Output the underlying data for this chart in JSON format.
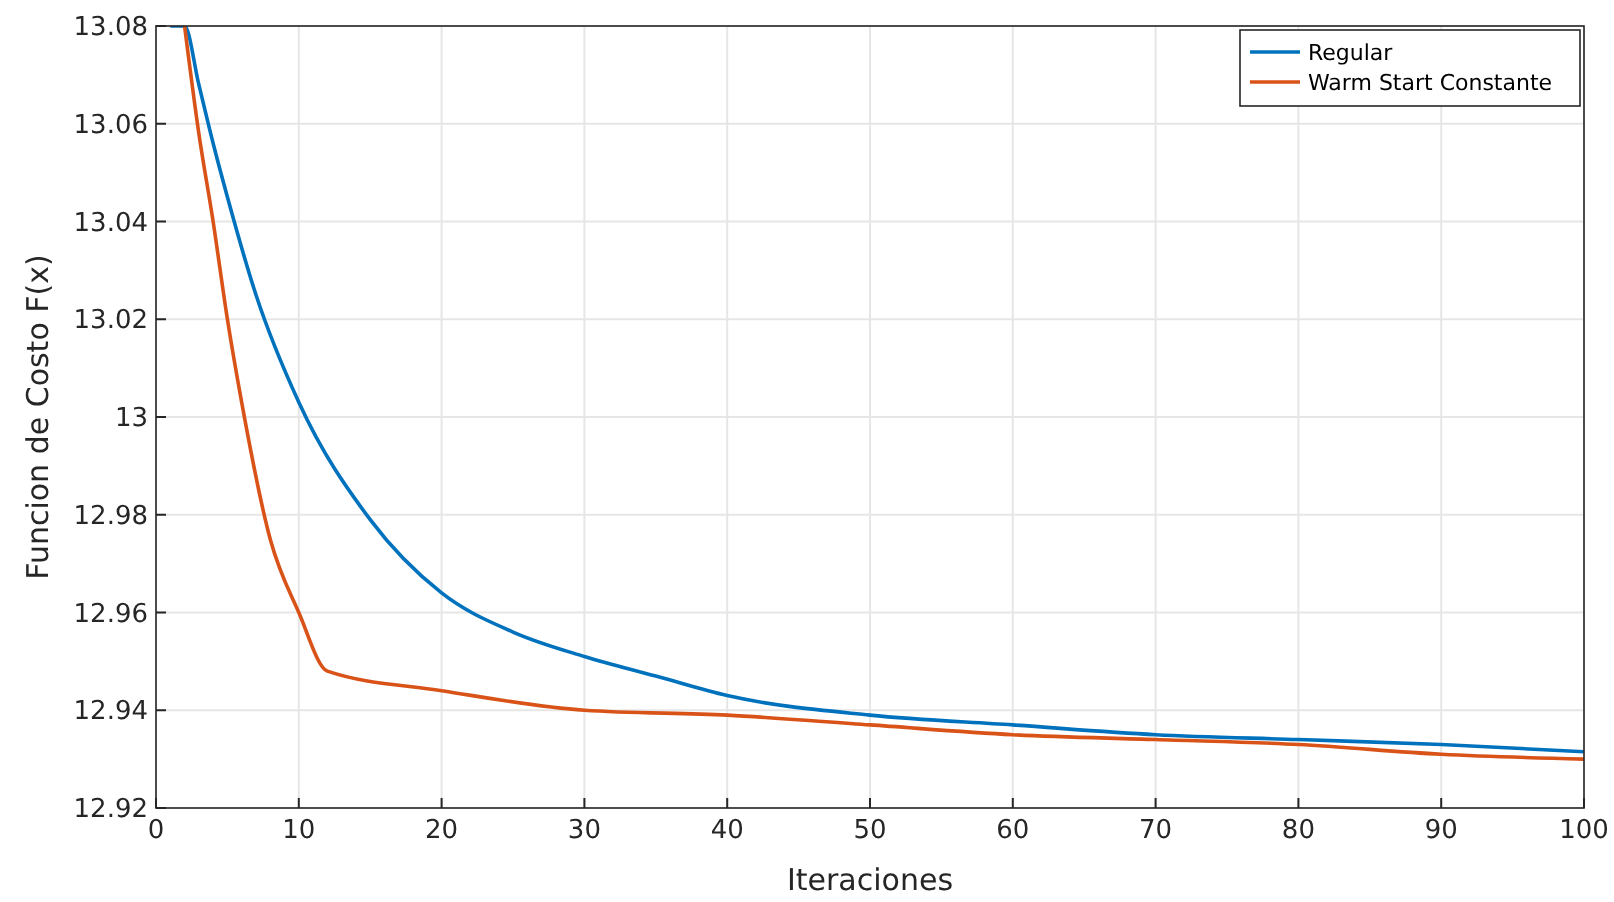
{
  "chart_data": {
    "type": "line",
    "xlabel": "Iteraciones",
    "ylabel": "Funcion de Costo F(x)",
    "xlim": [
      0,
      100
    ],
    "ylim": [
      12.92,
      13.08
    ],
    "xticks": [
      0,
      10,
      20,
      30,
      40,
      50,
      60,
      70,
      80,
      90,
      100
    ],
    "yticks": [
      12.92,
      12.94,
      12.96,
      12.98,
      13,
      13.02,
      13.04,
      13.06,
      13.08
    ],
    "grid": true,
    "legend": "top right",
    "line_style": "solid",
    "series": [
      {
        "name": "Regular",
        "color": "#0072bd",
        "x": [
          1,
          2,
          3,
          4,
          5,
          7,
          10,
          15,
          20,
          25,
          30,
          35,
          40,
          50,
          60,
          70,
          80,
          90,
          100
        ],
        "values": [
          13.08,
          13.08,
          13.068,
          13.056,
          13.045,
          13.025,
          13.003,
          12.979,
          12.964,
          12.956,
          12.951,
          12.947,
          12.943,
          12.939,
          12.937,
          12.935,
          12.934,
          12.933,
          12.9315
        ]
      },
      {
        "name": "Warm Start Constante",
        "color": "#d95319",
        "x": [
          2,
          3,
          4,
          5,
          6,
          8,
          10,
          12,
          20,
          30,
          40,
          50,
          60,
          70,
          80,
          90,
          100
        ],
        "values": [
          13.08,
          13.058,
          13.04,
          13.02,
          13.003,
          12.975,
          12.96,
          12.948,
          12.944,
          12.94,
          12.939,
          12.937,
          12.935,
          12.934,
          12.933,
          12.931,
          12.93
        ]
      }
    ]
  }
}
